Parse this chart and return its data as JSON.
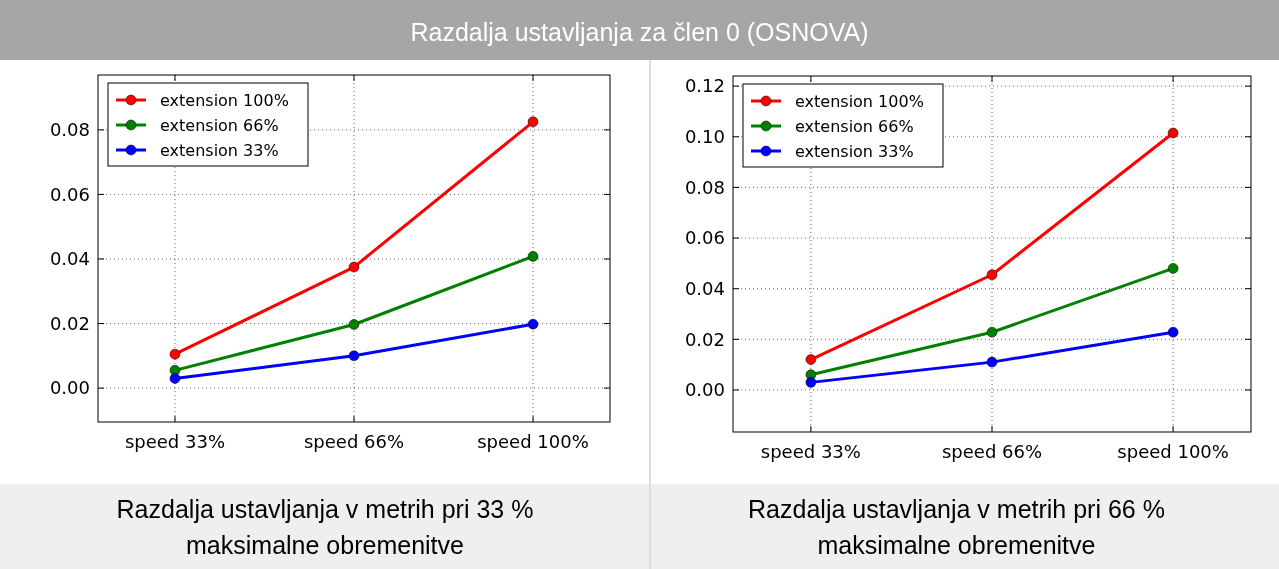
{
  "chart_data": [
    {
      "type": "line",
      "title": "Razdalja ustavljanja za člen 0 (OSNOVA)",
      "annotations": [
        "Razdalja ustavljanja v metrih pri 33 %\nmaksimalne obremenitve"
      ],
      "categories": [
        "speed 33%",
        "speed 66%",
        "speed 100%"
      ],
      "series": [
        {
          "name": "extension 100%",
          "color": "#ff0000",
          "values": [
            0.0105,
            0.0375,
            0.0825
          ]
        },
        {
          "name": "extension 66%",
          "color": "#008000",
          "values": [
            0.0055,
            0.0197,
            0.0408
          ]
        },
        {
          "name": "extension 33%",
          "color": "#0000ff",
          "values": [
            0.003,
            0.01,
            0.0198
          ]
        }
      ],
      "ylim": [
        -0.0105,
        0.097
      ],
      "yticks": [
        {
          "value": 0,
          "label": "0.00"
        },
        {
          "value": 0.02,
          "label": "0.02"
        },
        {
          "value": 0.04,
          "label": "0.04"
        },
        {
          "value": 0.06,
          "label": "0.06"
        },
        {
          "value": 0.08,
          "label": "0.08"
        }
      ],
      "grid": true,
      "legend": "top left",
      "marker": "circle",
      "line_style": "solid"
    },
    {
      "type": "line",
      "annotations": [
        "Razdalja ustavljanja v metrih pri 66 %\nmaksimalne obremenitve"
      ],
      "categories": [
        "speed 33%",
        "speed 66%",
        "speed 100%"
      ],
      "series": [
        {
          "name": "extension 100%",
          "color": "#ff0000",
          "values": [
            0.012,
            0.0455,
            0.1015
          ]
        },
        {
          "name": "extension 66%",
          "color": "#008000",
          "values": [
            0.006,
            0.0228,
            0.048
          ]
        },
        {
          "name": "extension 33%",
          "color": "#0000ff",
          "values": [
            0.003,
            0.011,
            0.0228
          ]
        }
      ],
      "ylim": [
        -0.0166,
        0.124
      ],
      "yticks": [
        {
          "value": 0,
          "label": "0.00"
        },
        {
          "value": 0.02,
          "label": "0.02"
        },
        {
          "value": 0.04,
          "label": "0.04"
        },
        {
          "value": 0.06,
          "label": "0.06"
        },
        {
          "value": 0.08,
          "label": "0.08"
        },
        {
          "value": 0.1,
          "label": "0.10"
        },
        {
          "value": 0.12,
          "label": "0.12"
        }
      ],
      "grid": true,
      "legend": "top left",
      "marker": "circle",
      "line_style": "solid"
    }
  ]
}
